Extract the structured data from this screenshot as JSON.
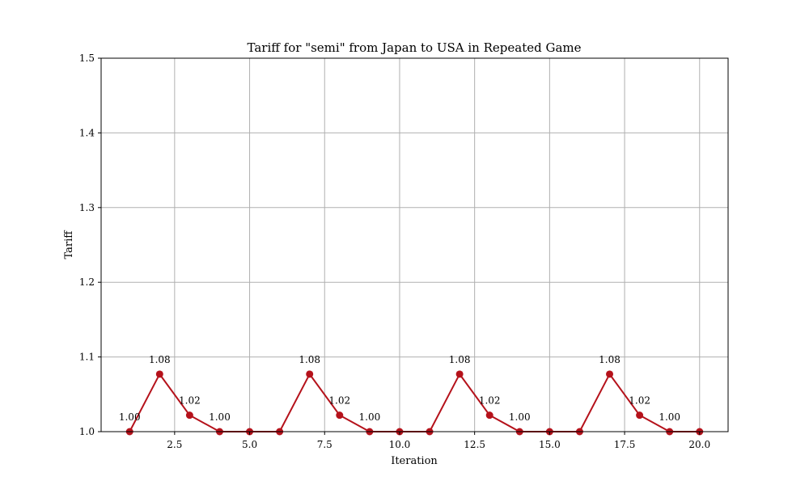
{
  "chart_data": {
    "type": "line",
    "title": "Tariff for \"semi\" from Japan to USA in Repeated Game",
    "xlabel": "Iteration",
    "ylabel": "Tariff",
    "xlim": [
      0.05,
      20.95
    ],
    "ylim": [
      1.0,
      1.5
    ],
    "x_ticks": [
      2.5,
      5.0,
      7.5,
      10.0,
      12.5,
      15.0,
      17.5,
      20.0
    ],
    "x_tick_labels": [
      "2.5",
      "5.0",
      "7.5",
      "10.0",
      "12.5",
      "15.0",
      "17.5",
      "20.0"
    ],
    "y_ticks": [
      1.0,
      1.1,
      1.2,
      1.3,
      1.4,
      1.5
    ],
    "y_tick_labels": [
      "1.0",
      "1.1",
      "1.2",
      "1.3",
      "1.4",
      "1.5"
    ],
    "grid": true,
    "color": "#b5121b",
    "x": [
      1,
      2,
      3,
      4,
      5,
      6,
      7,
      8,
      9,
      10,
      11,
      12,
      13,
      14,
      15,
      16,
      17,
      18,
      19,
      20
    ],
    "values": [
      1.0,
      1.077,
      1.022,
      1.0,
      1.0,
      1.0,
      1.077,
      1.022,
      1.0,
      1.0,
      1.0,
      1.077,
      1.022,
      1.0,
      1.0,
      1.0,
      1.077,
      1.022,
      1.0,
      1.0
    ],
    "annotations": [
      {
        "x": 1,
        "y": 1.0,
        "text": "1.00"
      },
      {
        "x": 2,
        "y": 1.077,
        "text": "1.08"
      },
      {
        "x": 3,
        "y": 1.022,
        "text": "1.02"
      },
      {
        "x": 4,
        "y": 1.0,
        "text": "1.00"
      },
      {
        "x": 7,
        "y": 1.077,
        "text": "1.08"
      },
      {
        "x": 8,
        "y": 1.022,
        "text": "1.02"
      },
      {
        "x": 9,
        "y": 1.0,
        "text": "1.00"
      },
      {
        "x": 12,
        "y": 1.077,
        "text": "1.08"
      },
      {
        "x": 13,
        "y": 1.022,
        "text": "1.02"
      },
      {
        "x": 14,
        "y": 1.0,
        "text": "1.00"
      },
      {
        "x": 17,
        "y": 1.077,
        "text": "1.08"
      },
      {
        "x": 18,
        "y": 1.022,
        "text": "1.02"
      },
      {
        "x": 19,
        "y": 1.0,
        "text": "1.00"
      }
    ]
  }
}
